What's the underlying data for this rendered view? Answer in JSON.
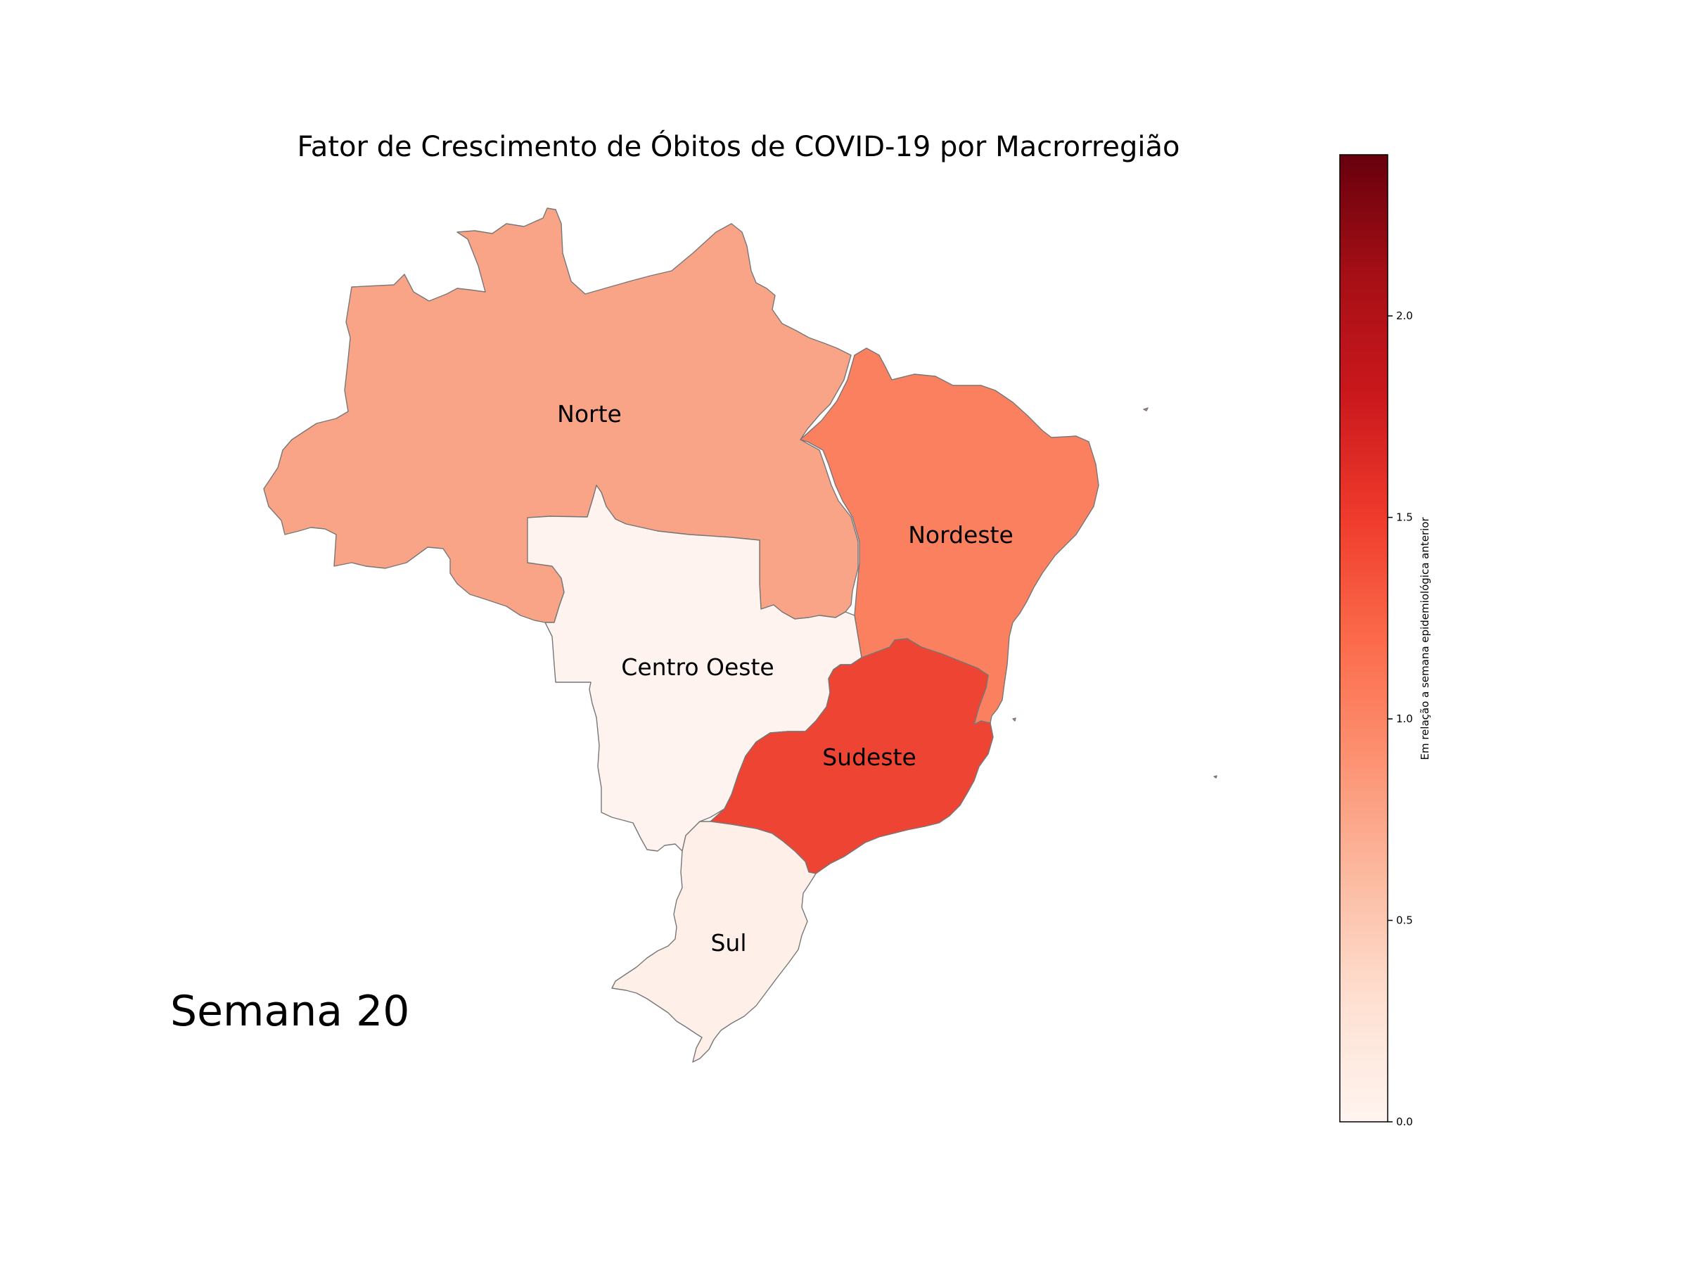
{
  "title": "Fator de Crescimento de Óbitos de COVID-19 por Macrorregião",
  "week_label": "Semana 20",
  "colorbar": {
    "label": "Em relação a semana epidemiológica anterior",
    "colormap": "Reds",
    "min": 0.0,
    "max": 2.4,
    "ticks": [
      "0.0",
      "0.5",
      "1.0",
      "1.5",
      "2.0"
    ],
    "tick_values": [
      0.0,
      0.5,
      1.0,
      1.5,
      2.0
    ]
  },
  "regions": [
    {
      "name": "Norte",
      "key": "norte",
      "color": "#f9a486"
    },
    {
      "name": "Nordeste",
      "key": "nordeste",
      "color": "#fb8060"
    },
    {
      "name": "Centro Oeste",
      "key": "centro-oeste",
      "color": "#fef3ef"
    },
    {
      "name": "Sudeste",
      "key": "sudeste",
      "color": "#ee4433"
    },
    {
      "name": "Sul",
      "key": "sul",
      "color": "#fef0e9"
    }
  ]
}
